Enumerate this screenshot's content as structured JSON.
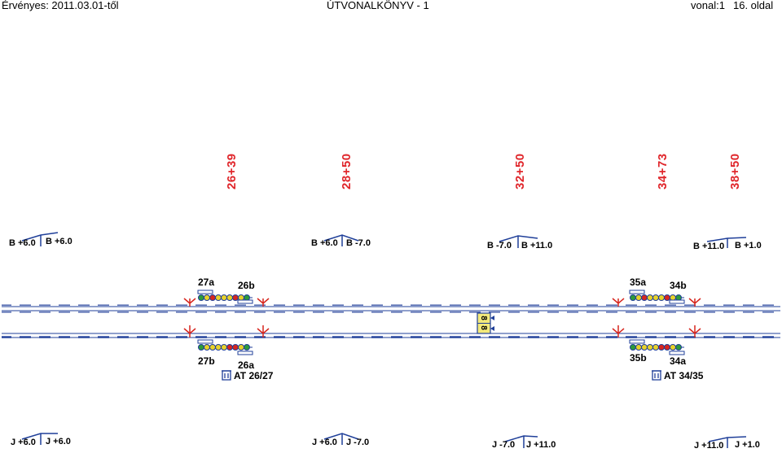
{
  "header": {
    "validity": "Érvényes: 2011.03.01-től",
    "title": "ÚTVONALKÖNYV - 1",
    "line": "vonal:1",
    "page": "16. oldal"
  },
  "chainages": [
    "26+39",
    "28+50",
    "32+50",
    "34+73",
    "38+50"
  ],
  "gradients_top": [
    {
      "left": "B +6.0",
      "right": "B +6.0"
    },
    {
      "left": "B +6.0",
      "right": "B -7.0"
    },
    {
      "left": "B -7.0",
      "right": "B +11.0"
    },
    {
      "left": "B +11.0",
      "right": "B +1.0"
    }
  ],
  "gradients_bottom": [
    {
      "left": "J +6.0",
      "right": "J +6.0"
    },
    {
      "left": "J +6.0",
      "right": "J -7.0"
    },
    {
      "left": "J -7.0",
      "right": "J +11.0"
    },
    {
      "left": "J +11.0",
      "right": "J +1.0"
    }
  ],
  "signals": {
    "s27a": "27a",
    "s26b": "26b",
    "s27b": "27b",
    "s26a": "26a",
    "s35a": "35a",
    "s34b": "34b",
    "s35b": "35b",
    "s34a": "34a"
  },
  "stations": {
    "at1": "AT 26/27",
    "at2": "AT 34/35"
  },
  "marker": {
    "upper": "8",
    "lower": "8"
  },
  "colors": {
    "track": "#1f3f99",
    "chainage": "#e0262b",
    "signal_red": "#d7261e",
    "signal_yellow": "#e8d22a",
    "signal_green": "#2e9a3a",
    "marker_bg": "#f3e97a"
  }
}
